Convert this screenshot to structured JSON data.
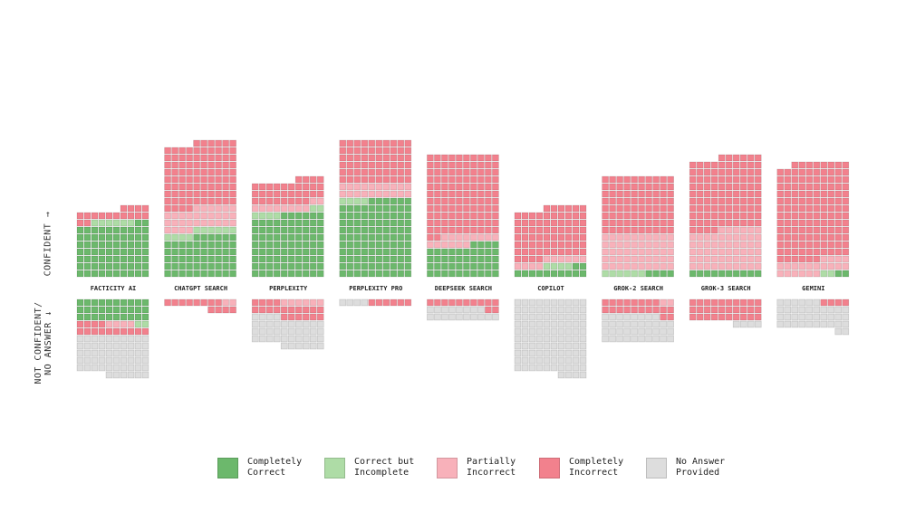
{
  "chart_data": {
    "type": "waffle",
    "categories": [
      "FACTICITY AI",
      "CHATGPT SEARCH",
      "PERPLEXITY",
      "PERPLEXITY PRO",
      "DEEPSEEK SEARCH",
      "COPILOT",
      "GROK-2 SEARCH",
      "GROK-3 SEARCH",
      "GEMINI"
    ],
    "confident_label": "CONFIDENT →",
    "not_confident_label": "NOT CONFIDENT/ NO ANSWER ↓",
    "series": [
      {
        "name": "Completely Correct",
        "color": "#6cb86c",
        "confident": [
          72,
          56,
          86,
          106,
          44,
          12,
          4,
          10,
          2
        ],
        "not_confident": [
          30,
          0,
          0,
          0,
          0,
          0,
          0,
          0,
          0
        ]
      },
      {
        "name": "Correct but Incomplete",
        "color": "#aedca6",
        "confident": [
          6,
          10,
          6,
          4,
          0,
          4,
          6,
          0,
          2
        ],
        "not_confident": [
          2,
          0,
          0,
          0,
          0,
          0,
          0,
          0,
          0
        ]
      },
      {
        "name": "Partially Incorrect",
        "color": "#f8b1ba",
        "confident": [
          0,
          30,
          10,
          20,
          14,
          10,
          50,
          56,
          20
        ],
        "not_confident": [
          4,
          2,
          6,
          0,
          0,
          0,
          2,
          0,
          0
        ]
      },
      {
        "name": "Completely Incorrect",
        "color": "#f2818d",
        "confident": [
          16,
          90,
          32,
          60,
          112,
          70,
          80,
          100,
          134
        ],
        "not_confident": [
          14,
          12,
          20,
          6,
          12,
          0,
          20,
          30,
          4
        ]
      },
      {
        "name": "No Answer Provided",
        "color": "#dddddd",
        "confident": [
          0,
          0,
          0,
          0,
          0,
          0,
          0,
          0,
          0
        ],
        "not_confident": [
          56,
          0,
          40,
          4,
          18,
          104,
          38,
          4,
          38
        ]
      }
    ]
  }
}
